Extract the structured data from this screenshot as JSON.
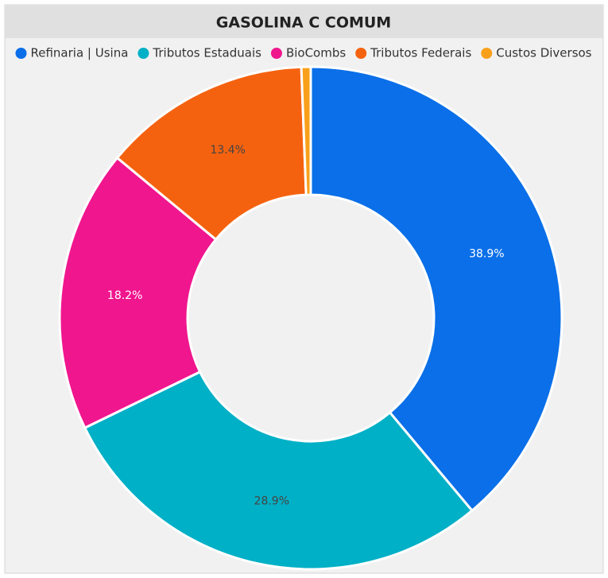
{
  "chart_data": {
    "type": "donut",
    "title": "GASOLINA C COMUM",
    "categories": [
      "Refinaria | Usina",
      "Tributos Estaduais",
      "BioCombs",
      "Tributos Federais",
      "Custos Diversos"
    ],
    "values": [
      38.9,
      28.9,
      18.2,
      13.4,
      0.6
    ],
    "value_labels": [
      "38.9%",
      "28.9%",
      "18.2%",
      "13.4%",
      null
    ],
    "colors": [
      "#0a6fe8",
      "#00b0c6",
      "#f0168e",
      "#f5620f",
      "#f9a01b"
    ],
    "legend": "top"
  }
}
